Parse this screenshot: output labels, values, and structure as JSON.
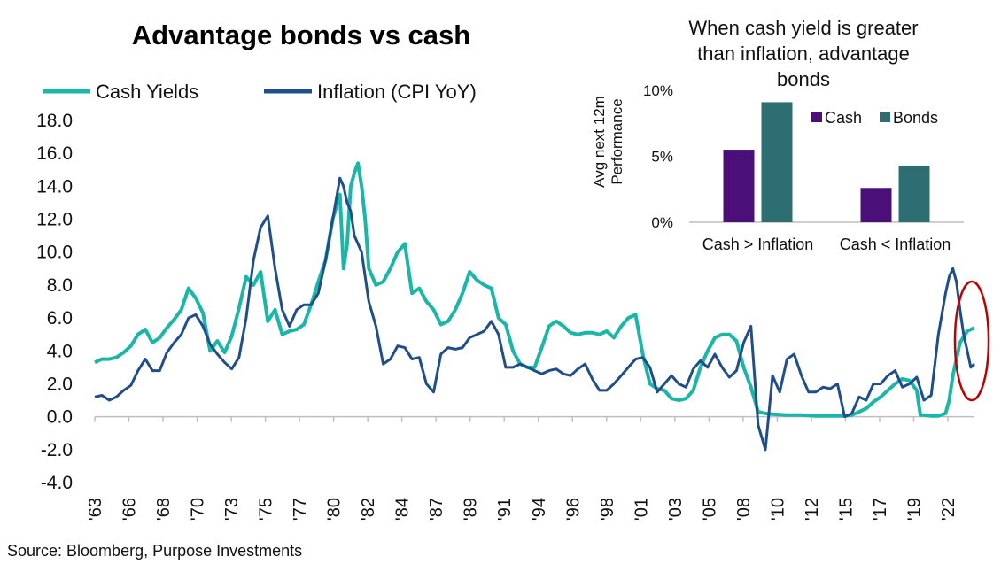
{
  "colors": {
    "cash_yields": "#1ab7a8",
    "inflation": "#1f4e8c",
    "bar_cash": "#4b0f7a",
    "bar_bonds": "#2d6e73",
    "highlight_ellipse": "#c00000"
  },
  "source": "Source: Bloomberg, Purpose Investments",
  "chart_data": [
    {
      "type": "line",
      "title": "Advantage bonds vs cash",
      "xlabel": "",
      "ylabel": "",
      "ylim": [
        -4.0,
        18.0
      ],
      "yticks": [
        "18.0",
        "16.0",
        "14.0",
        "12.0",
        "10.0",
        "8.0",
        "6.0",
        "4.0",
        "2.0",
        "0.0",
        "-2.0",
        "-4.0"
      ],
      "xlim": [
        1963,
        2024
      ],
      "xticks": [
        "'63",
        "'66",
        "'68",
        "'70",
        "'73",
        "'75",
        "'77",
        "'80",
        "'82",
        "'84",
        "'87",
        "'89",
        "'91",
        "'94",
        "'96",
        "'98",
        "'01",
        "'03",
        "'05",
        "'08",
        "'10",
        "'12",
        "'15",
        "'17",
        "'19",
        "'22"
      ],
      "legend_position": "top-left",
      "series": [
        {
          "name": "Cash Yields",
          "x": [
            1963.0,
            1963.5,
            1964.0,
            1964.5,
            1965.0,
            1965.5,
            1966.0,
            1966.5,
            1967.0,
            1967.5,
            1968.0,
            1968.5,
            1969.0,
            1969.5,
            1970.0,
            1970.5,
            1971.0,
            1971.5,
            1972.0,
            1972.5,
            1973.0,
            1973.5,
            1974.0,
            1974.5,
            1975.0,
            1975.5,
            1976.0,
            1976.5,
            1977.0,
            1977.5,
            1978.0,
            1978.5,
            1979.0,
            1979.5,
            1980.0,
            1980.25,
            1980.5,
            1980.75,
            1981.0,
            1981.25,
            1981.5,
            1981.75,
            1982.0,
            1982.5,
            1983.0,
            1983.5,
            1984.0,
            1984.5,
            1985.0,
            1985.5,
            1986.0,
            1986.5,
            1987.0,
            1987.5,
            1988.0,
            1988.5,
            1989.0,
            1989.5,
            1990.0,
            1990.5,
            1991.0,
            1991.5,
            1992.0,
            1992.5,
            1993.0,
            1993.5,
            1994.0,
            1994.5,
            1995.0,
            1995.5,
            1996.0,
            1996.5,
            1997.0,
            1997.5,
            1998.0,
            1998.5,
            1999.0,
            1999.5,
            2000.0,
            2000.5,
            2001.0,
            2001.5,
            2002.0,
            2002.5,
            2003.0,
            2003.5,
            2004.0,
            2004.5,
            2005.0,
            2005.5,
            2006.0,
            2006.5,
            2007.0,
            2007.5,
            2008.0,
            2008.5,
            2009.0,
            2009.5,
            2010.0,
            2011.0,
            2012.0,
            2013.0,
            2014.0,
            2015.0,
            2015.5,
            2016.0,
            2016.5,
            2017.0,
            2017.5,
            2018.0,
            2018.5,
            2019.0,
            2019.5,
            2020.0,
            2020.25,
            2020.5,
            2021.0,
            2021.5,
            2022.0,
            2022.25,
            2022.5,
            2022.75,
            2023.0,
            2023.5,
            2024.0
          ],
          "values": [
            3.3,
            3.5,
            3.5,
            3.6,
            3.9,
            4.3,
            5.0,
            5.3,
            4.5,
            4.8,
            5.4,
            5.9,
            6.5,
            7.8,
            7.2,
            6.3,
            4.0,
            4.6,
            3.9,
            4.9,
            6.6,
            8.5,
            8.0,
            8.8,
            5.8,
            6.5,
            5.0,
            5.2,
            5.3,
            5.6,
            6.8,
            8.2,
            9.5,
            12.0,
            13.5,
            9.0,
            10.5,
            14.0,
            14.8,
            15.4,
            14.0,
            12.0,
            9.0,
            8.0,
            8.2,
            9.0,
            10.0,
            10.5,
            7.5,
            7.8,
            7.0,
            6.5,
            5.6,
            5.8,
            6.5,
            7.5,
            8.8,
            8.3,
            8.0,
            7.8,
            6.0,
            5.6,
            4.0,
            3.2,
            3.0,
            3.0,
            4.2,
            5.5,
            5.8,
            5.5,
            5.1,
            5.0,
            5.1,
            5.1,
            5.0,
            5.2,
            4.8,
            5.5,
            6.0,
            6.2,
            3.8,
            2.0,
            1.7,
            1.6,
            1.1,
            1.0,
            1.1,
            1.6,
            3.0,
            4.0,
            4.8,
            5.0,
            5.0,
            4.6,
            3.0,
            1.8,
            0.3,
            0.2,
            0.15,
            0.1,
            0.1,
            0.05,
            0.05,
            0.05,
            0.1,
            0.3,
            0.5,
            0.9,
            1.2,
            1.6,
            2.0,
            2.3,
            2.2,
            1.6,
            0.1,
            0.1,
            0.05,
            0.05,
            0.2,
            1.0,
            2.5,
            3.5,
            4.5,
            5.2,
            5.4
          ]
        },
        {
          "name": "Inflation (CPI YoY)",
          "x": [
            1963.0,
            1963.5,
            1964.0,
            1964.5,
            1965.0,
            1965.5,
            1966.0,
            1966.5,
            1967.0,
            1967.5,
            1968.0,
            1968.5,
            1969.0,
            1969.5,
            1970.0,
            1970.5,
            1971.0,
            1971.5,
            1972.0,
            1972.5,
            1973.0,
            1973.5,
            1974.0,
            1974.5,
            1975.0,
            1975.5,
            1976.0,
            1976.5,
            1977.0,
            1977.5,
            1978.0,
            1978.5,
            1979.0,
            1979.5,
            1980.0,
            1980.25,
            1980.5,
            1980.75,
            1981.0,
            1981.25,
            1981.5,
            1982.0,
            1982.5,
            1983.0,
            1983.5,
            1984.0,
            1984.5,
            1985.0,
            1985.5,
            1986.0,
            1986.5,
            1987.0,
            1987.5,
            1988.0,
            1988.5,
            1989.0,
            1989.5,
            1990.0,
            1990.5,
            1991.0,
            1991.5,
            1992.0,
            1992.5,
            1993.0,
            1993.5,
            1994.0,
            1994.5,
            1995.0,
            1995.5,
            1996.0,
            1996.5,
            1997.0,
            1997.5,
            1998.0,
            1998.5,
            1999.0,
            1999.5,
            2000.0,
            2000.5,
            2001.0,
            2001.5,
            2002.0,
            2002.5,
            2003.0,
            2003.5,
            2004.0,
            2004.5,
            2005.0,
            2005.5,
            2006.0,
            2006.5,
            2007.0,
            2007.5,
            2008.0,
            2008.5,
            2009.0,
            2009.5,
            2010.0,
            2010.5,
            2011.0,
            2011.5,
            2012.0,
            2012.5,
            2013.0,
            2013.5,
            2014.0,
            2014.5,
            2015.0,
            2015.5,
            2016.0,
            2016.5,
            2017.0,
            2017.5,
            2018.0,
            2018.5,
            2019.0,
            2019.5,
            2020.0,
            2020.5,
            2021.0,
            2021.5,
            2022.0,
            2022.25,
            2022.5,
            2022.75,
            2023.0,
            2023.25,
            2023.5,
            2023.75,
            2024.0
          ],
          "values": [
            1.2,
            1.3,
            1.0,
            1.2,
            1.6,
            1.9,
            2.8,
            3.5,
            2.8,
            2.8,
            3.9,
            4.5,
            5.0,
            6.0,
            6.2,
            5.5,
            4.4,
            3.8,
            3.3,
            2.9,
            3.6,
            6.0,
            9.5,
            11.5,
            12.2,
            9.0,
            6.5,
            5.5,
            6.5,
            6.8,
            6.8,
            7.5,
            9.5,
            12.0,
            14.5,
            14.0,
            13.0,
            12.5,
            11.0,
            10.5,
            10.0,
            7.0,
            5.5,
            3.2,
            3.5,
            4.3,
            4.2,
            3.5,
            3.6,
            2.0,
            1.5,
            3.8,
            4.2,
            4.1,
            4.2,
            4.8,
            5.0,
            5.2,
            5.8,
            5.0,
            3.0,
            3.0,
            3.2,
            3.0,
            2.8,
            2.6,
            2.8,
            2.9,
            2.6,
            2.5,
            2.9,
            3.2,
            2.3,
            1.6,
            1.6,
            2.0,
            2.5,
            3.0,
            3.5,
            3.6,
            3.0,
            1.5,
            2.0,
            2.5,
            2.0,
            1.8,
            2.9,
            3.4,
            3.0,
            3.8,
            3.0,
            2.4,
            2.8,
            4.5,
            5.5,
            -0.5,
            -2.0,
            2.5,
            1.5,
            3.5,
            3.8,
            2.5,
            1.5,
            1.5,
            1.8,
            1.7,
            2.0,
            0.0,
            0.2,
            1.2,
            1.0,
            2.0,
            2.0,
            2.5,
            2.8,
            1.8,
            2.0,
            2.4,
            1.0,
            1.3,
            5.0,
            7.5,
            8.5,
            9.0,
            8.2,
            6.5,
            5.0,
            4.0,
            3.0,
            3.2
          ]
        }
      ],
      "annotations": [
        "highlight-ellipse"
      ]
    },
    {
      "type": "bar",
      "title": "When cash yield is greater than inflation, advantage bonds",
      "title_lines": [
        "When cash yield is greater",
        "than inflation, advantage",
        "bonds"
      ],
      "ylabel": "Avg next 12m Performance",
      "ylabel_lines": [
        "Avg next 12m",
        "Performance"
      ],
      "ylim": [
        0,
        10
      ],
      "yticks": [
        "10%",
        "5%",
        "0%"
      ],
      "categories": [
        "Cash > Inflation",
        "Cash < Inflation"
      ],
      "legend_position": "top-right",
      "series": [
        {
          "name": "Cash",
          "values": [
            5.5,
            2.6
          ]
        },
        {
          "name": "Bonds",
          "values": [
            9.1,
            4.3
          ]
        }
      ]
    }
  ]
}
